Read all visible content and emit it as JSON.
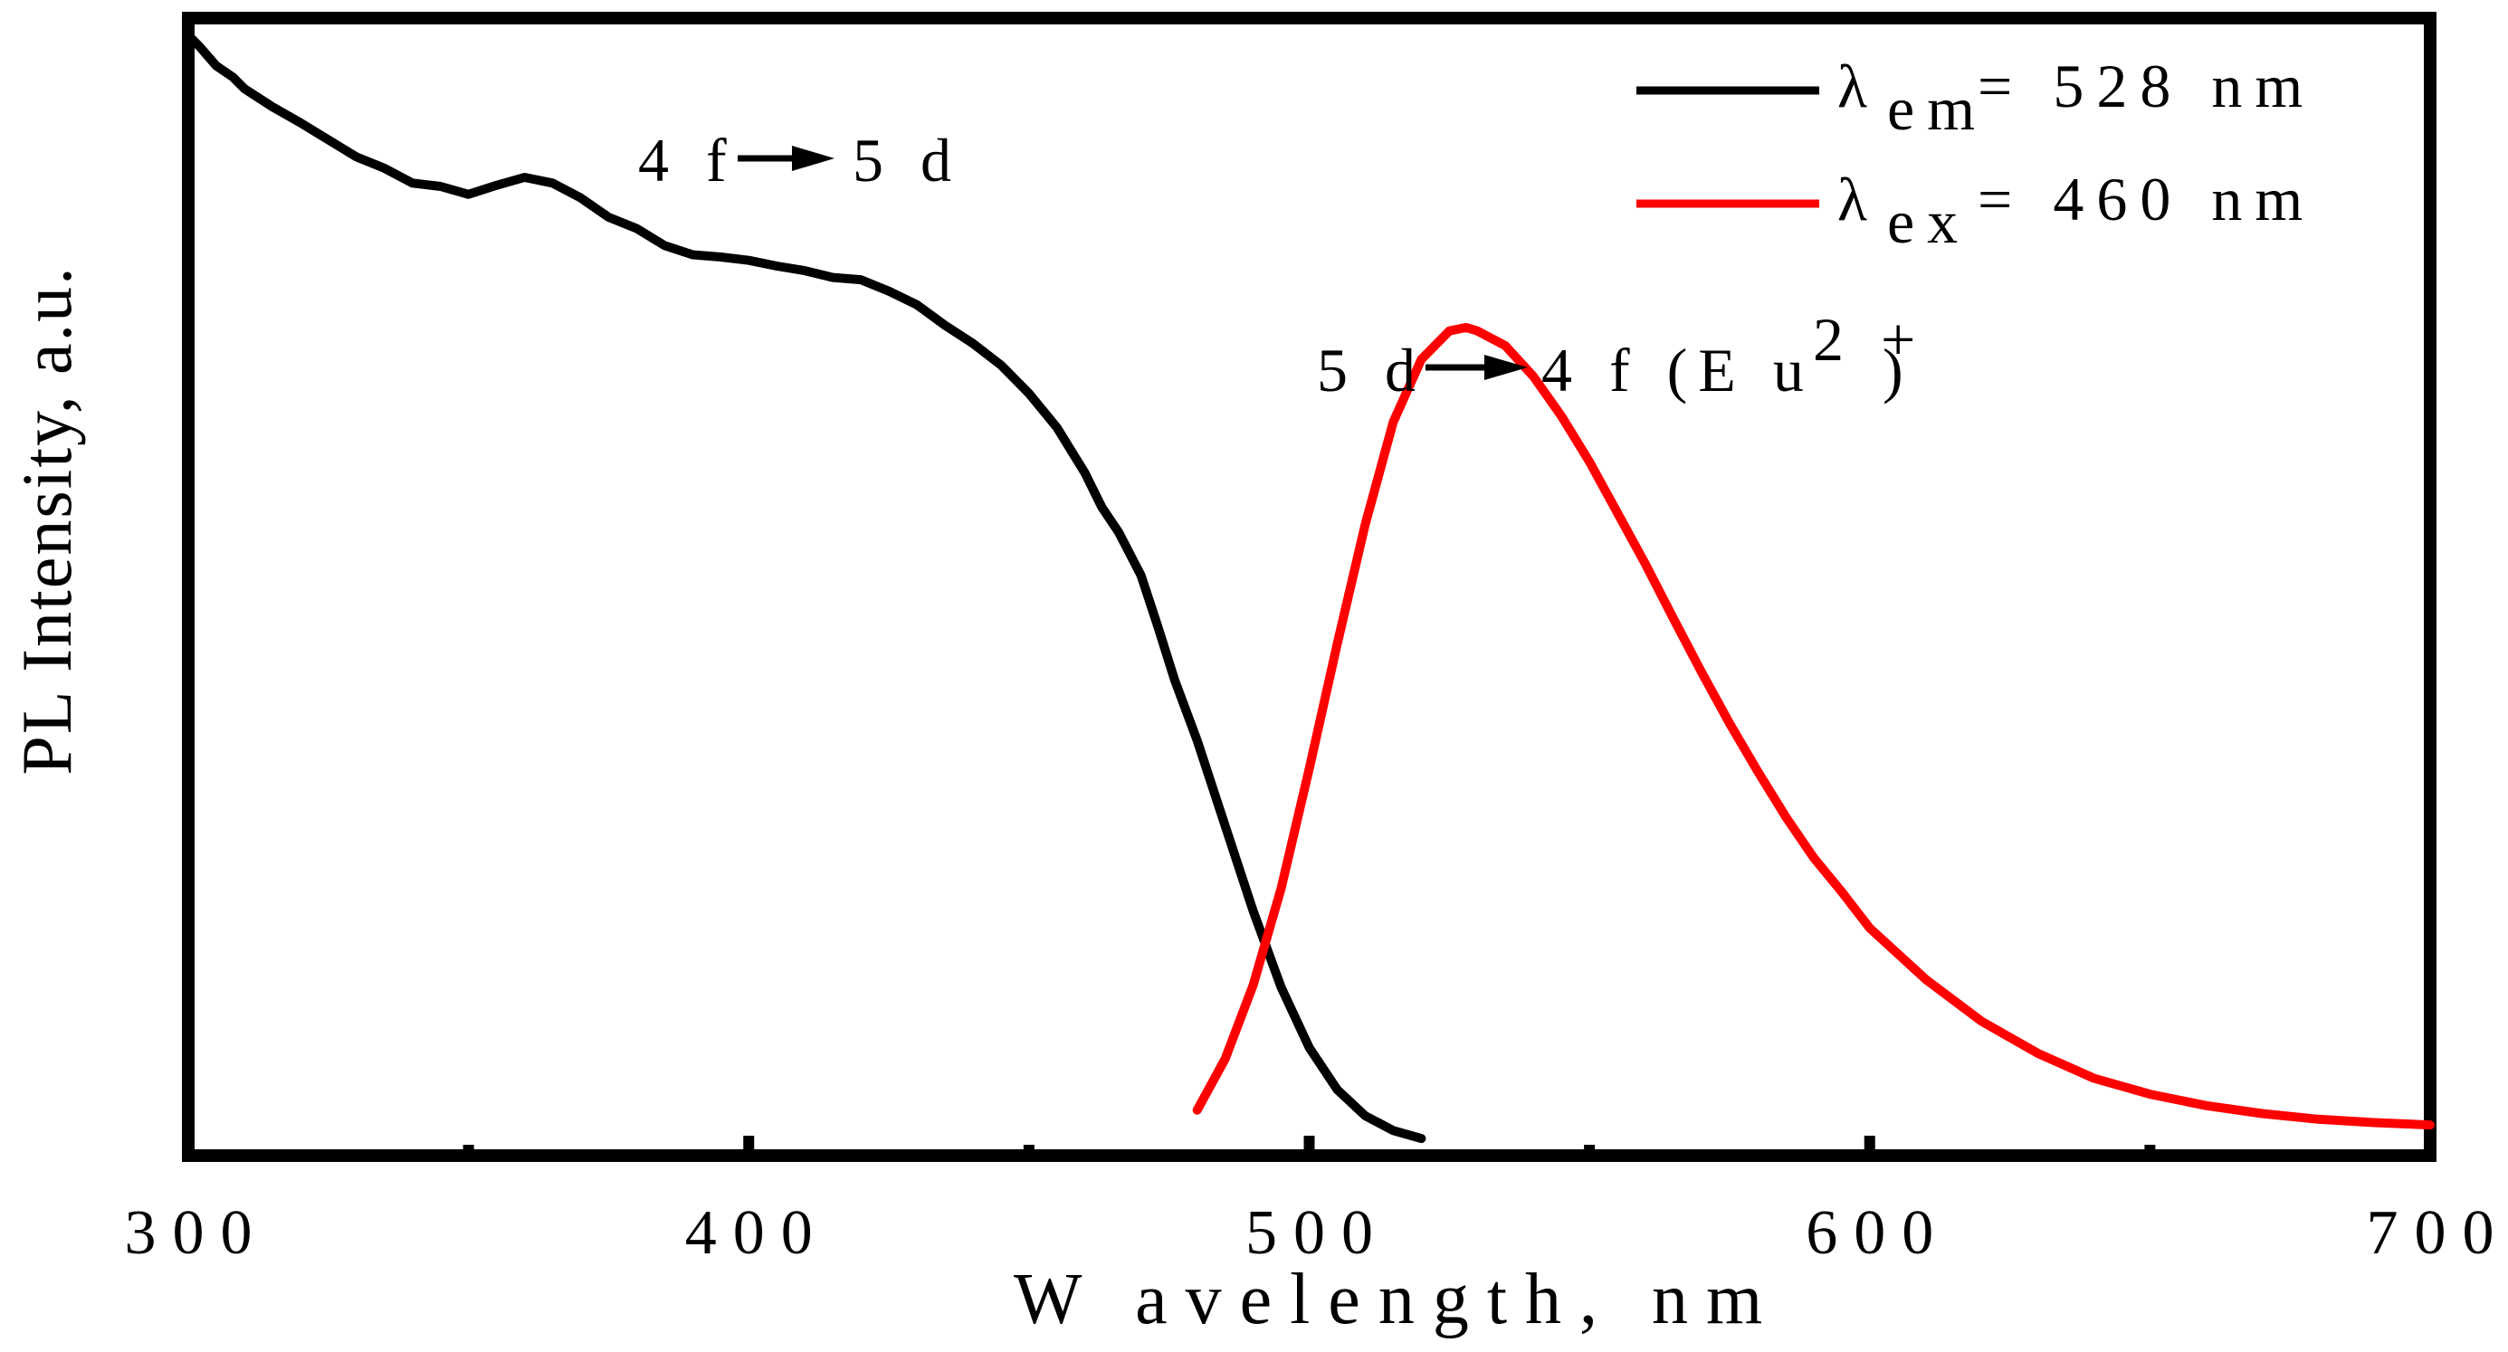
{
  "chart_data": {
    "type": "line",
    "title": "",
    "xlabel": "W avelength, nm",
    "ylabel": "PL Intensity, a.u.",
    "xlim": [
      300,
      700
    ],
    "ylim": [
      0,
      1
    ],
    "x_major_ticks": [
      300,
      400,
      500,
      600,
      700
    ],
    "x_minor_ticks": [
      350,
      450,
      550,
      650
    ],
    "x_tick_labels": [
      "300",
      "400",
      "500",
      "600",
      "700"
    ],
    "y_ticks_shown": false,
    "grid": false,
    "legend_placement": "top-right",
    "series": [
      {
        "name": "λem = 528 nm",
        "legend_label": {
          "symbol": "λ",
          "sub": "em",
          "text": "= 528 nm"
        },
        "color": "#000000",
        "x": [
          300,
          302,
          305,
          308,
          310,
          315,
          320,
          325,
          330,
          335,
          340,
          345,
          350,
          355,
          360,
          365,
          370,
          375,
          380,
          385,
          390,
          395,
          400,
          405,
          410,
          415,
          420,
          425,
          430,
          435,
          440,
          445,
          450,
          455,
          460,
          463,
          466,
          470,
          473,
          476,
          480,
          485,
          490,
          495,
          500,
          505,
          510,
          515,
          520
        ],
        "values": [
          0.985,
          0.975,
          0.958,
          0.948,
          0.938,
          0.922,
          0.908,
          0.893,
          0.878,
          0.868,
          0.855,
          0.852,
          0.845,
          0.853,
          0.86,
          0.855,
          0.842,
          0.825,
          0.815,
          0.8,
          0.792,
          0.79,
          0.787,
          0.782,
          0.778,
          0.772,
          0.77,
          0.76,
          0.748,
          0.73,
          0.714,
          0.695,
          0.67,
          0.64,
          0.6,
          0.57,
          0.548,
          0.51,
          0.465,
          0.418,
          0.365,
          0.29,
          0.215,
          0.148,
          0.095,
          0.058,
          0.035,
          0.022,
          0.015
        ]
      },
      {
        "name": "λex = 460 nm",
        "legend_label": {
          "symbol": "λ",
          "sub": "ex",
          "text": "= 460 nm"
        },
        "color": "#ff0000",
        "x": [
          480,
          485,
          490,
          495,
          500,
          505,
          510,
          515,
          520,
          525,
          528,
          530,
          535,
          540,
          545,
          550,
          555,
          560,
          565,
          570,
          575,
          580,
          585,
          590,
          595,
          600,
          610,
          620,
          630,
          640,
          650,
          660,
          670,
          680,
          690,
          700
        ],
        "values": [
          0.04,
          0.085,
          0.15,
          0.235,
          0.34,
          0.45,
          0.555,
          0.645,
          0.7,
          0.725,
          0.728,
          0.725,
          0.712,
          0.685,
          0.65,
          0.61,
          0.565,
          0.52,
          0.472,
          0.425,
          0.38,
          0.338,
          0.298,
          0.262,
          0.232,
          0.2,
          0.155,
          0.118,
          0.09,
          0.068,
          0.054,
          0.044,
          0.037,
          0.032,
          0.029,
          0.027
        ]
      }
    ],
    "annotations": [
      {
        "name": "annotation-4f-5d",
        "from": "4 f",
        "to": "5 d",
        "x": 375,
        "y": 0.905
      },
      {
        "name": "annotation-5d-4f",
        "from": "5 d",
        "to": "4 f (E u",
        "sup": "2 +",
        "close": ")",
        "x": 500,
        "y": 0.755
      }
    ]
  }
}
